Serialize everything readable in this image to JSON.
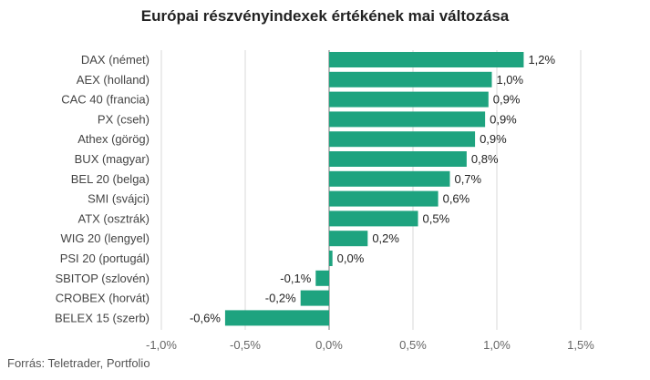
{
  "title": "Európai részvényindexek értékének mai változása",
  "source": "Forrás: Teletrader, Portfolio",
  "colors": {
    "bar": "#1ea37f",
    "grid": "#d9d9d9",
    "axis": "#777777"
  },
  "chart_data": {
    "type": "bar",
    "orientation": "horizontal",
    "categories": [
      "DAX (német)",
      "AEX (holland)",
      "CAC 40 (francia)",
      "PX (cseh)",
      "Athex (görög)",
      "BUX (magyar)",
      "BEL 20 (belga)",
      "SMI (svájci)",
      "ATX (osztrák)",
      "WIG 20 (lengyel)",
      "PSI 20 (portugál)",
      "SBITOP (szlovén)",
      "CROBEX (horvát)",
      "BELEX 15 (szerb)"
    ],
    "values": [
      1.16,
      0.97,
      0.95,
      0.93,
      0.87,
      0.82,
      0.72,
      0.65,
      0.53,
      0.23,
      0.02,
      -0.08,
      -0.17,
      -0.62
    ],
    "labels": [
      "1,2%",
      "1,0%",
      "0,9%",
      "0,9%",
      "0,9%",
      "0,8%",
      "0,7%",
      "0,6%",
      "0,5%",
      "0,2%",
      "0,0%",
      "-0,1%",
      "-0,2%",
      "-0,6%"
    ],
    "xlim": [
      -1.0,
      1.5
    ],
    "xticks": [
      -1.0,
      -0.5,
      0.0,
      0.5,
      1.0,
      1.5
    ],
    "xtick_labels": [
      "-1,0%",
      "-0,5%",
      "0,0%",
      "0,5%",
      "1,0%",
      "1,5%"
    ],
    "grid": true,
    "legend": "none"
  }
}
